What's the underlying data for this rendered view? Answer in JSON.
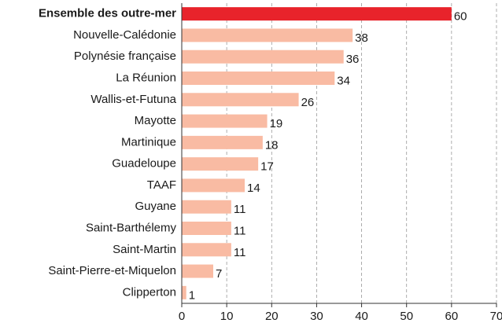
{
  "chart_data": {
    "type": "bar",
    "orientation": "horizontal",
    "categories": [
      "Ensemble des outre-mer",
      "Nouvelle-Calédonie",
      "Polynésie française",
      "La Réunion",
      "Wallis-et-Futuna",
      "Mayotte",
      "Martinique",
      "Guadeloupe",
      "TAAF",
      "Guyane",
      "Saint-Barthélemy",
      "Saint-Martin",
      "Saint-Pierre-et-Miquelon",
      "Clipperton"
    ],
    "values": [
      60,
      38,
      36,
      34,
      26,
      19,
      18,
      17,
      14,
      11,
      11,
      11,
      7,
      1
    ],
    "colors": [
      "#e8232b",
      "#f9bba3",
      "#f9bba3",
      "#f9bba3",
      "#f9bba3",
      "#f9bba3",
      "#f9bba3",
      "#f9bba3",
      "#f9bba3",
      "#f9bba3",
      "#f9bba3",
      "#f9bba3",
      "#f9bba3",
      "#f9bba3"
    ],
    "xlim": [
      0,
      70
    ],
    "xticks": [
      0,
      10,
      20,
      30,
      40,
      50,
      60,
      70
    ],
    "grid": true
  }
}
